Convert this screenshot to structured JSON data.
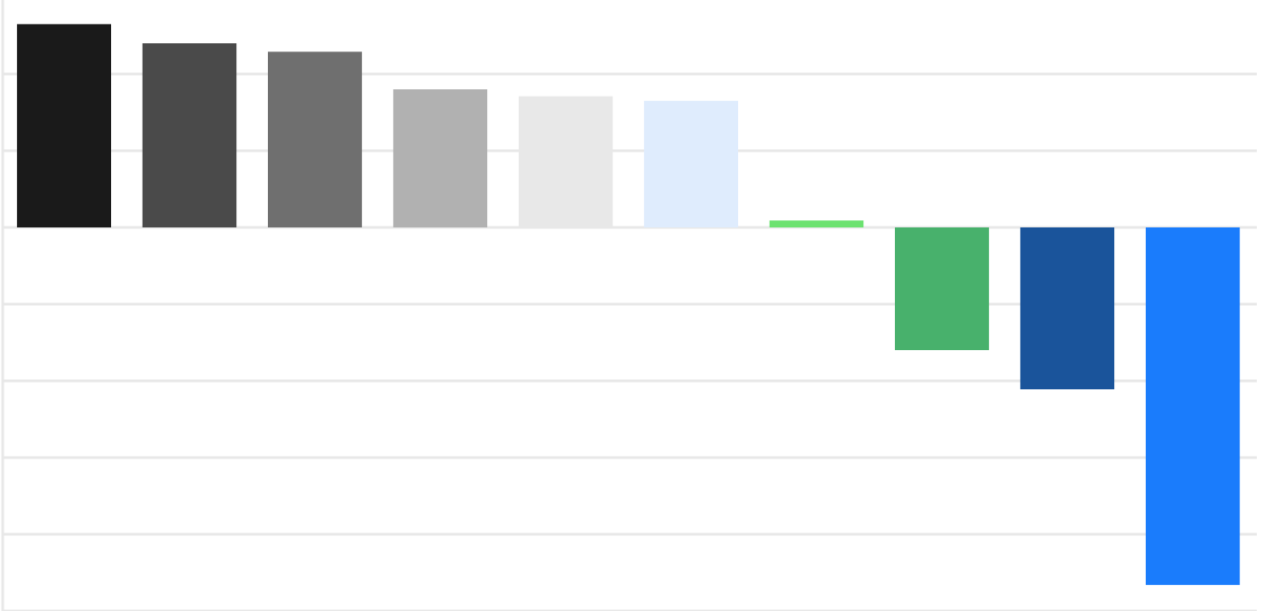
{
  "chart_data": {
    "type": "bar",
    "categories": [
      null,
      null,
      null,
      null,
      null,
      null,
      null,
      null,
      null,
      null
    ],
    "values": [
      2.65,
      2.4,
      2.29,
      1.8,
      1.71,
      1.65,
      0.09,
      -1.6,
      -2.11,
      -4.66
    ],
    "colors": [
      "#1a1a1a",
      "#4a4a4a",
      "#6f6f6f",
      "#b1b1b1",
      "#e8e8e8",
      "#dfecfd",
      "#6ce270",
      "#48b16c",
      "#1a549b",
      "#1a7cfc"
    ],
    "ylim": [
      -5,
      3
    ],
    "yticks": [
      -5,
      -4,
      -3,
      -2,
      -1,
      0,
      1,
      2
    ],
    "grid": true
  }
}
